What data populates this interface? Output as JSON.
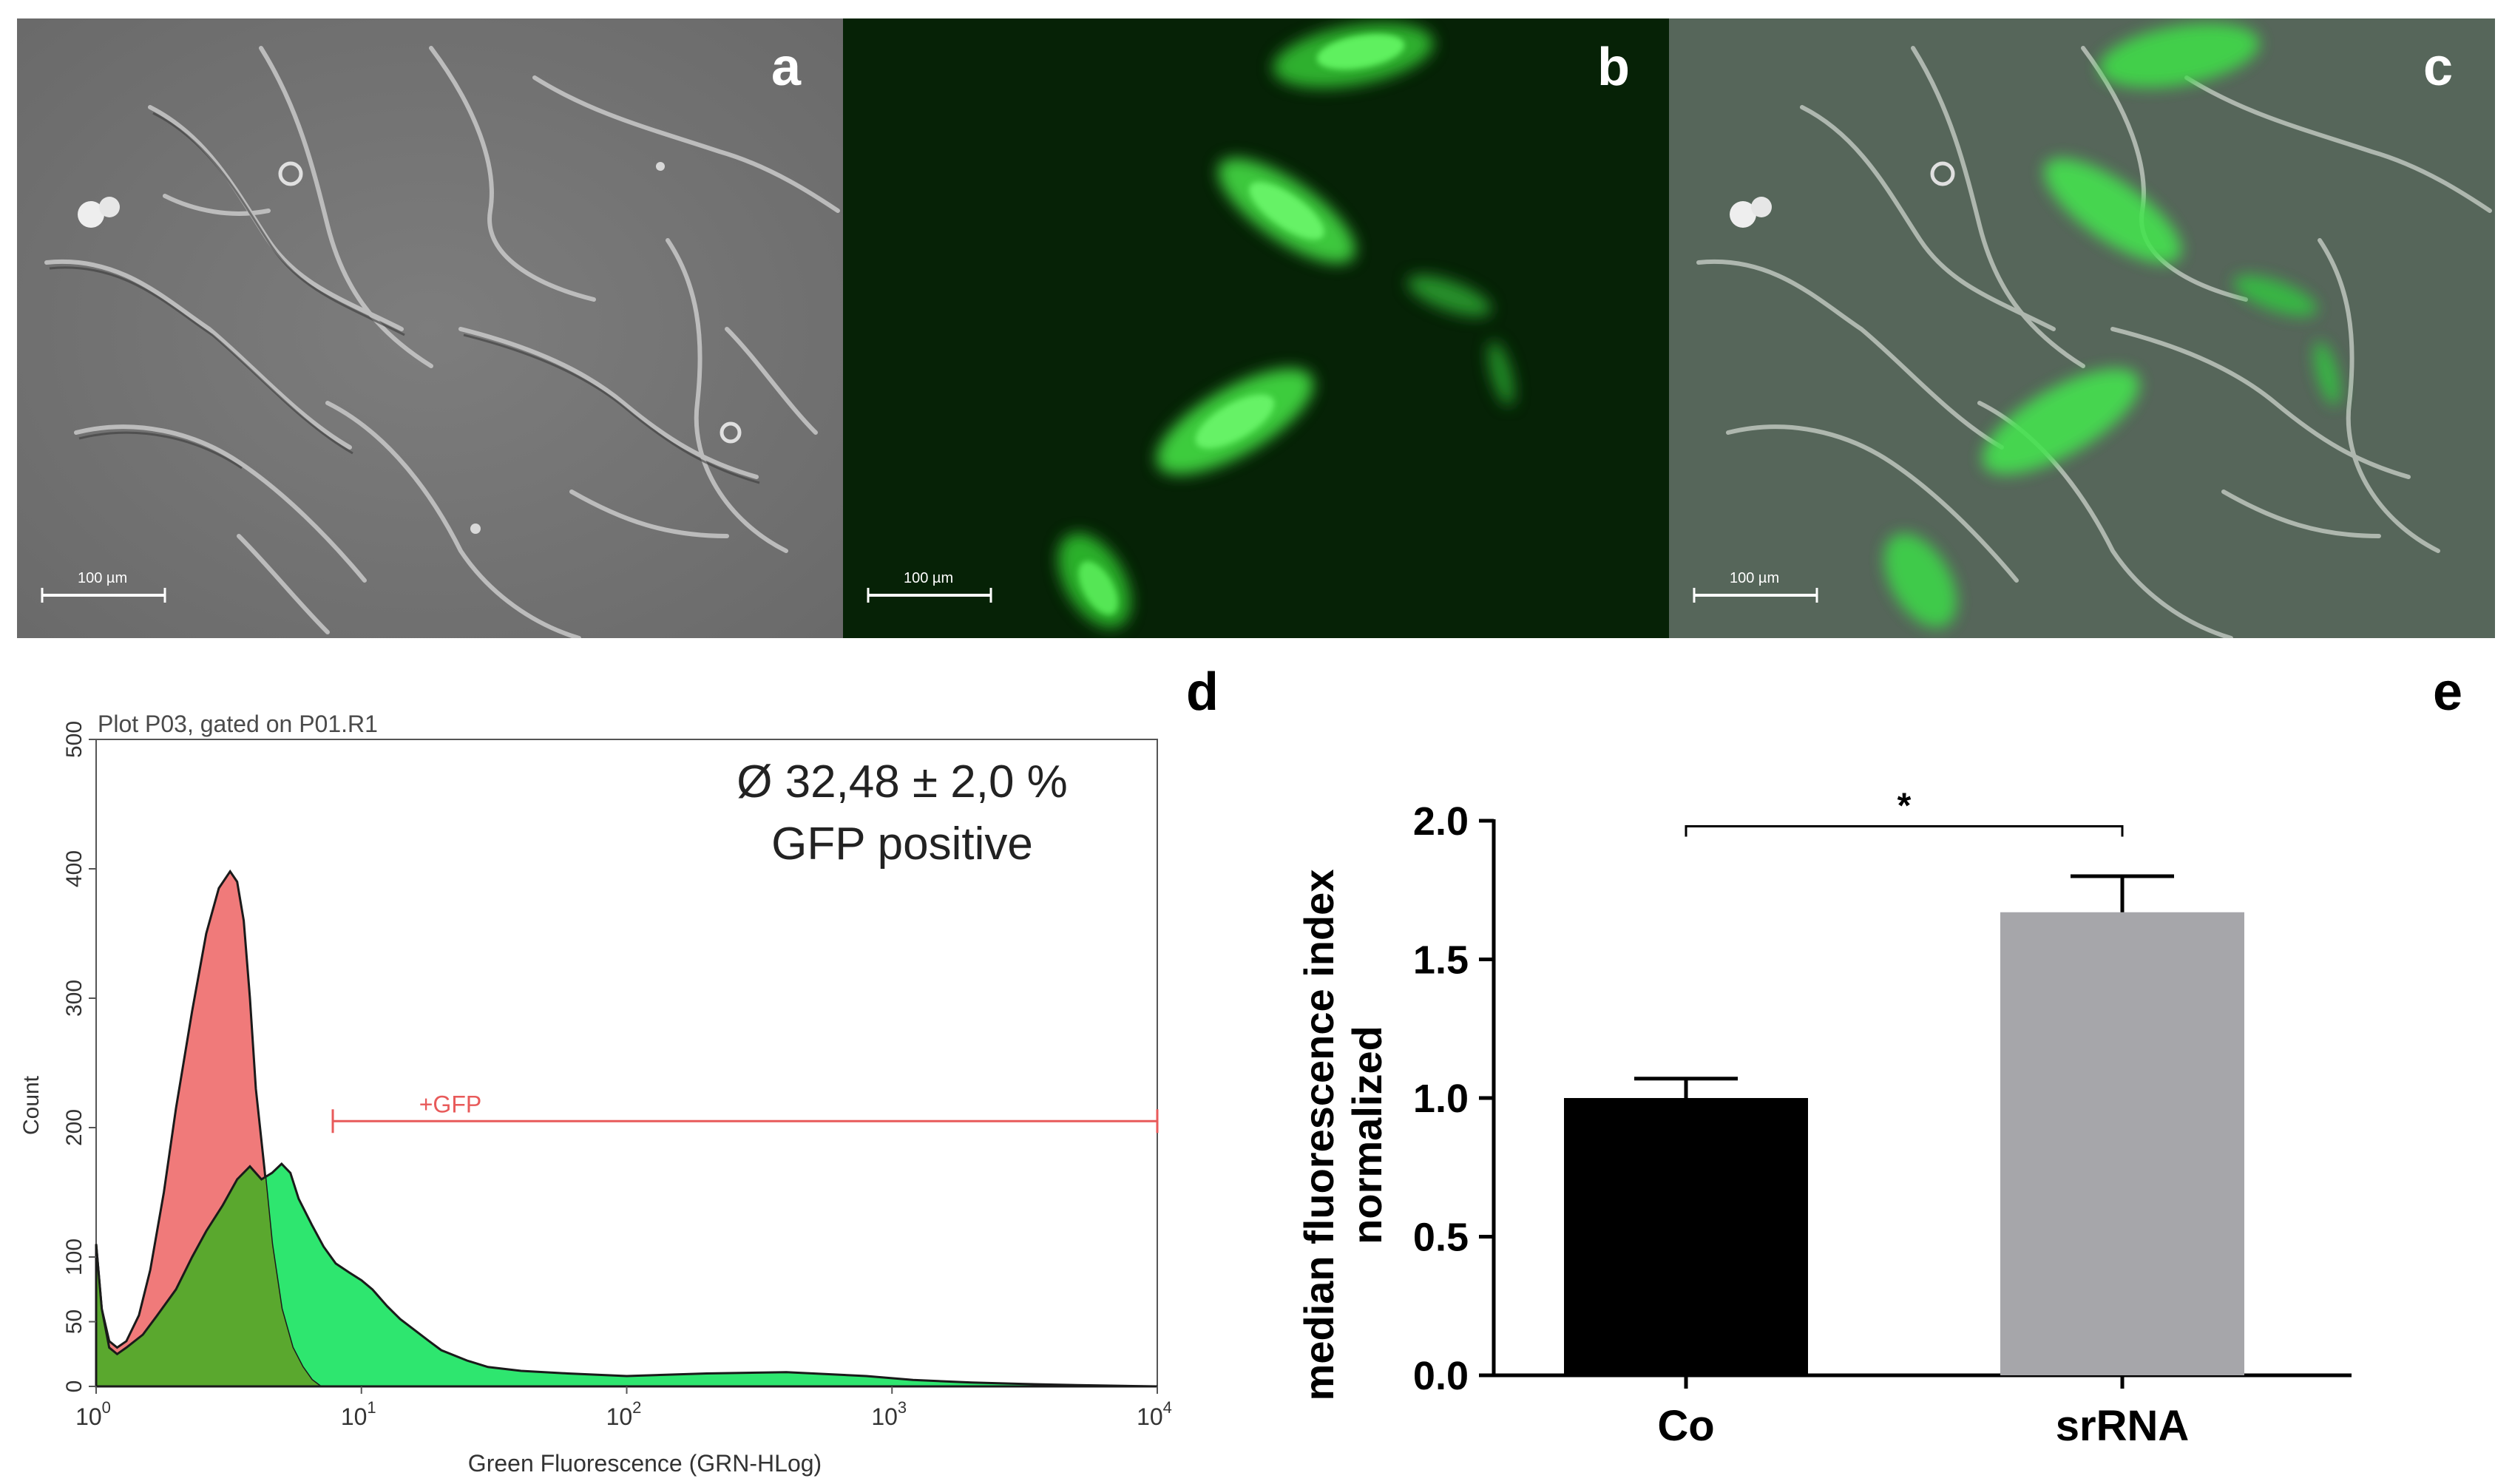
{
  "figure": {
    "panels": {
      "a": {
        "label": "a",
        "scalebar": "100 µm"
      },
      "b": {
        "label": "b",
        "scalebar": "100 µm"
      },
      "c": {
        "label": "c",
        "scalebar": "100 µm"
      },
      "d": {
        "label": "d"
      },
      "e": {
        "label": "e"
      }
    },
    "histogram": {
      "plot_title": "Plot P03, gated on P01.R1",
      "annotation_line1": "Ø 32,48 ± 2,0 %",
      "annotation_line2": "GFP positive",
      "gate_label": "+GFP",
      "ylabel": "Count",
      "xlabel": "Green Fluorescence (GRN-HLog)",
      "colors": {
        "control": "#f07a7a",
        "srna": "#2ee66f",
        "overlap": "#5aa82e",
        "gate": "#e85a5a"
      }
    }
  },
  "chart_data": [
    {
      "type": "area",
      "title": "Plot P03, gated on P01.R1",
      "xlabel": "Green Fluorescence (GRN-HLog)",
      "ylabel": "Count",
      "xscale": "log",
      "xlim": [
        1,
        10000
      ],
      "ylim": [
        0,
        500
      ],
      "xticks": [
        {
          "base": "10",
          "exp": "0"
        },
        {
          "base": "10",
          "exp": "1"
        },
        {
          "base": "10",
          "exp": "2"
        },
        {
          "base": "10",
          "exp": "3"
        },
        {
          "base": "10",
          "exp": "4"
        }
      ],
      "yticks": [
        "0",
        "50",
        "100",
        "200",
        "300",
        "400",
        "500"
      ],
      "ytick_values": [
        0,
        50,
        100,
        200,
        300,
        400,
        500
      ],
      "gate": {
        "label": "+GFP",
        "x_range": [
          7.8,
          10000
        ],
        "y": 205
      },
      "series": [
        {
          "x": [
            1,
            1.05,
            1.12,
            1.2,
            1.3,
            1.45,
            1.6,
            1.8,
            2.0,
            2.3,
            2.6,
            2.9,
            3.2,
            3.4,
            3.6,
            3.8,
            4.0,
            4.3,
            4.6,
            5.0,
            5.5,
            6.0,
            6.5,
            7.0
          ],
          "values": [
            110,
            60,
            35,
            30,
            35,
            55,
            90,
            150,
            215,
            290,
            350,
            385,
            398,
            390,
            360,
            300,
            230,
            170,
            110,
            60,
            30,
            15,
            5,
            0
          ]
        },
        {
          "x": [
            1,
            1.05,
            1.12,
            1.2,
            1.3,
            1.5,
            1.7,
            2.0,
            2.3,
            2.6,
            3.0,
            3.4,
            3.8,
            4.2,
            4.6,
            5.0,
            5.4,
            5.8,
            6.5,
            7.2,
            8.0,
            9.0,
            10.0,
            11,
            12.5,
            14,
            16,
            18,
            20,
            25,
            30,
            40,
            60,
            100,
            200,
            400,
            800,
            1200,
            2000,
            3000,
            5000,
            10000
          ],
          "values": [
            110,
            60,
            30,
            25,
            30,
            40,
            55,
            75,
            100,
            120,
            140,
            160,
            170,
            160,
            165,
            172,
            165,
            145,
            125,
            108,
            95,
            88,
            82,
            75,
            62,
            52,
            43,
            35,
            28,
            20,
            15,
            12,
            10,
            8,
            10,
            11,
            8,
            5,
            3,
            2,
            1,
            0
          ]
        }
      ]
    },
    {
      "type": "bar",
      "title": "",
      "xlabel": "",
      "ylabel_lines": [
        "median fluorescence index",
        "normalized"
      ],
      "categories": [
        "Co",
        "srRNA"
      ],
      "values": [
        1.0,
        1.67
      ],
      "errors": [
        0.07,
        0.13
      ],
      "colors": [
        "#000000",
        "#a6a6aa"
      ],
      "ylim": [
        0,
        2.0
      ],
      "yticks": [
        "0.0",
        "0.5",
        "1.0",
        "1.5",
        "2.0"
      ],
      "ytick_values": [
        0,
        0.5,
        1.0,
        1.5,
        2.0
      ],
      "significance": {
        "from": "Co",
        "to": "srRNA",
        "y": 1.98,
        "label": "*"
      }
    }
  ]
}
